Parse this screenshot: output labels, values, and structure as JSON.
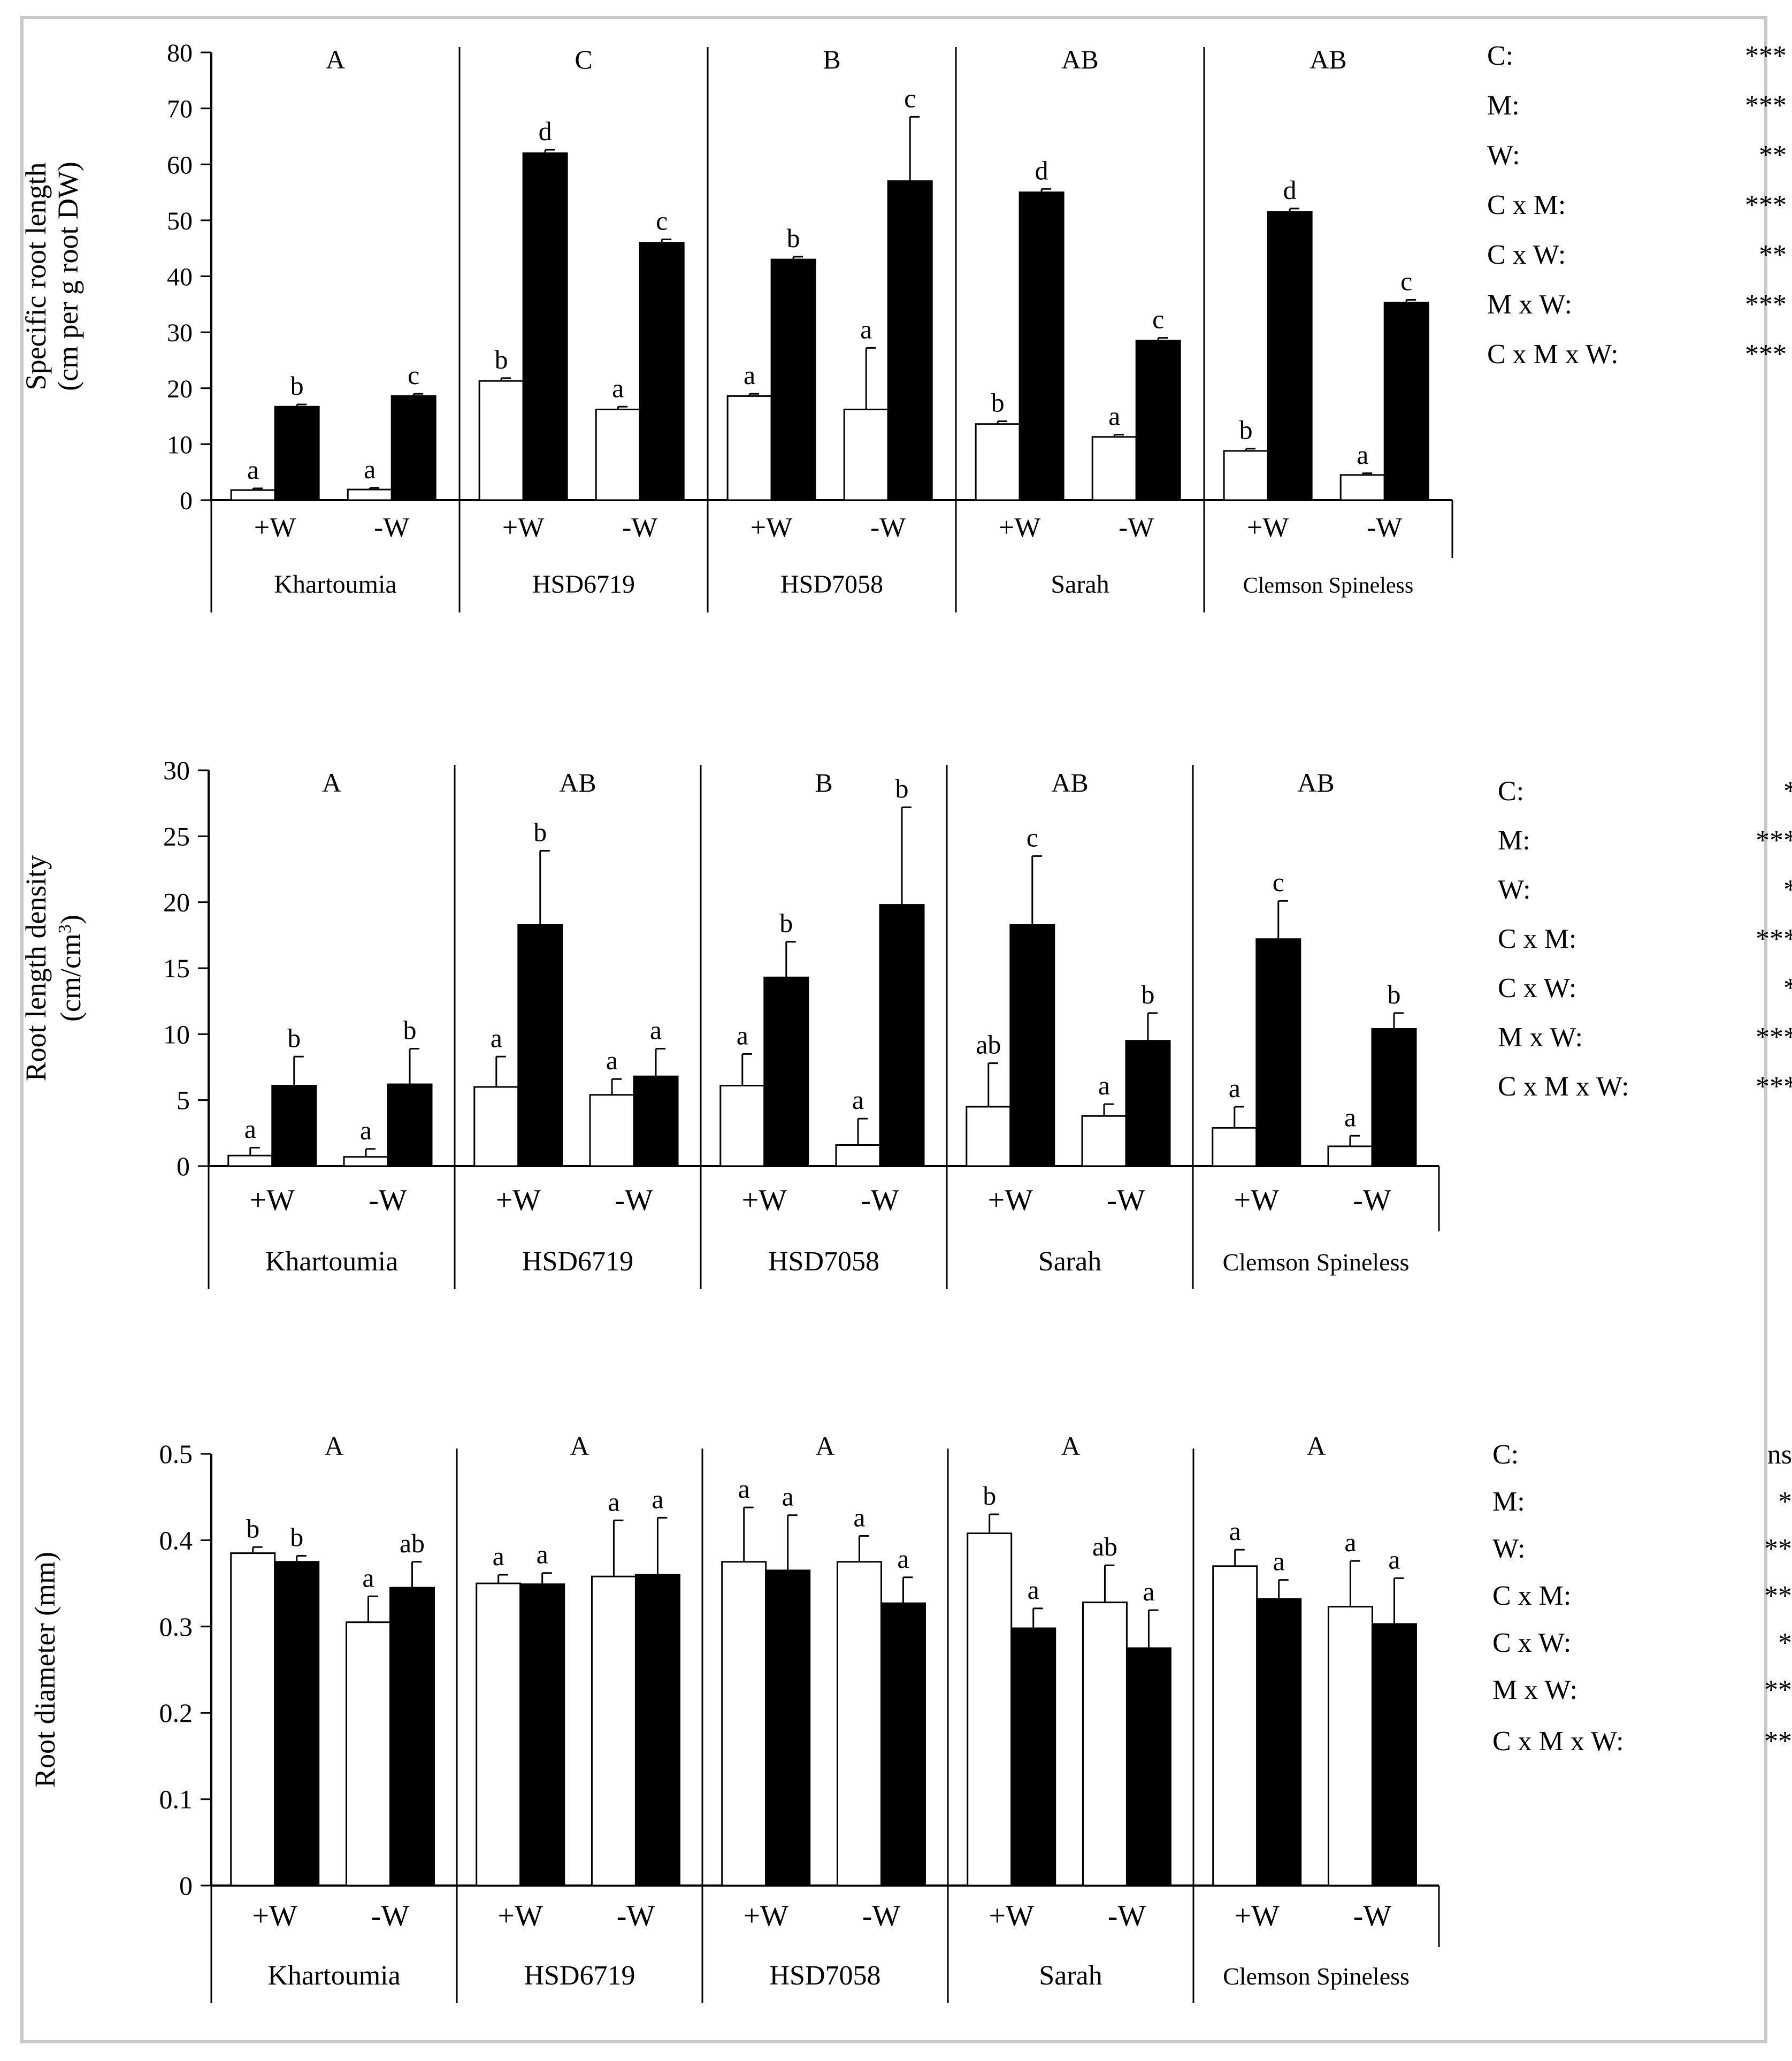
{
  "colors": {
    "bar_plus_m": "#000000",
    "bar_minus_m": "#ffffff",
    "frame": "#c8c8c8"
  },
  "chart_data": [
    {
      "type": "bar",
      "ylabel": "Specific root length",
      "ylabel_sub": "(cm per g root DW)",
      "ylim": [
        0,
        80
      ],
      "yticks": [
        0,
        10,
        20,
        30,
        40,
        50,
        60,
        70,
        80
      ],
      "ytick_labels": [
        "0",
        "10",
        "20",
        "30",
        "40",
        "50",
        "60",
        "70",
        "80"
      ],
      "cultivars": [
        "Khartoumia",
        "HSD6719",
        "HSD7058",
        "Sarah",
        "Clemson Spineless"
      ],
      "cultivar_letters": [
        "A",
        "C",
        "B",
        "AB",
        "AB"
      ],
      "water_levels": [
        "+W",
        "-W"
      ],
      "series": [
        {
          "name": "-M",
          "color": "#ffffff",
          "values": [
            1.8,
            1.9,
            21.3,
            16.2,
            18.6,
            16.2,
            13.6,
            11.3,
            8.8,
            4.5
          ],
          "errors": [
            0.3,
            0.3,
            0.5,
            0.5,
            0.4,
            11.0,
            0.5,
            0.4,
            0.4,
            0.3
          ],
          "letters": [
            "a",
            "a",
            "b",
            "a",
            "a",
            "a",
            "b",
            "a",
            "b",
            "a"
          ]
        },
        {
          "name": "+M",
          "color": "#000000",
          "values": [
            16.7,
            18.6,
            62.0,
            46.0,
            43.0,
            57.0,
            55.0,
            28.5,
            51.5,
            35.3
          ],
          "errors": [
            0.4,
            0.4,
            0.6,
            0.6,
            0.5,
            11.5,
            0.6,
            0.5,
            0.6,
            0.5
          ],
          "letters": [
            "b",
            "c",
            "d",
            "c",
            "b",
            "c",
            "d",
            "c",
            "d",
            "c"
          ]
        }
      ]
    },
    {
      "type": "bar",
      "ylabel": "Root length density",
      "ylabel_sub": "(cm/cm",
      "ylabel_sup": "3",
      "ylabel_close": ")",
      "ylim": [
        0,
        30
      ],
      "yticks": [
        0,
        5,
        10,
        15,
        20,
        25,
        30
      ],
      "ytick_labels": [
        "0",
        "5",
        "10",
        "15",
        "20",
        "25",
        "30"
      ],
      "cultivars": [
        "Khartoumia",
        "HSD6719",
        "HSD7058",
        "Sarah",
        "Clemson Spineless"
      ],
      "cultivar_letters": [
        "A",
        "AB",
        "B",
        "AB",
        "AB"
      ],
      "water_levels": [
        "+W",
        "-W"
      ],
      "series": [
        {
          "name": "-M",
          "color": "#ffffff",
          "values": [
            0.8,
            0.7,
            6.0,
            5.4,
            6.1,
            1.6,
            4.5,
            3.8,
            2.9,
            1.5
          ],
          "errors": [
            0.6,
            0.6,
            2.3,
            1.2,
            2.4,
            2.0,
            3.3,
            0.9,
            1.6,
            0.8
          ],
          "letters": [
            "a",
            "a",
            "a",
            "a",
            "a",
            "a",
            "ab",
            "a",
            "a",
            "a"
          ]
        },
        {
          "name": "+M",
          "color": "#000000",
          "values": [
            6.1,
            6.2,
            18.3,
            6.8,
            14.3,
            19.8,
            18.3,
            9.5,
            17.2,
            10.4
          ],
          "errors": [
            2.2,
            2.7,
            5.6,
            2.1,
            2.7,
            7.4,
            5.2,
            2.1,
            2.9,
            1.2
          ],
          "letters": [
            "b",
            "b",
            "b",
            "a",
            "b",
            "b",
            "c",
            "b",
            "c",
            "b"
          ]
        }
      ]
    },
    {
      "type": "bar",
      "ylabel": "Root diameter (mm)",
      "ylim": [
        0,
        0.5
      ],
      "yticks": [
        0,
        0.1,
        0.2,
        0.3,
        0.4,
        0.5
      ],
      "ytick_labels": [
        "0",
        "0.1",
        "0.2",
        "0.3",
        "0.4",
        "0.5"
      ],
      "cultivars": [
        "Khartoumia",
        "HSD6719",
        "HSD7058",
        "Sarah",
        "Clemson Spineless"
      ],
      "cultivar_letters": [
        "A",
        "A",
        "A",
        "A",
        "A"
      ],
      "water_levels": [
        "+W",
        "-W"
      ],
      "series": [
        {
          "name": "-M",
          "color": "#ffffff",
          "values": [
            0.385,
            0.305,
            0.35,
            0.358,
            0.375,
            0.375,
            0.408,
            0.328,
            0.37,
            0.323
          ],
          "errors": [
            0.007,
            0.03,
            0.01,
            0.065,
            0.063,
            0.03,
            0.022,
            0.043,
            0.019,
            0.053
          ],
          "letters": [
            "b",
            "a",
            "a",
            "a",
            "a",
            "a",
            "b",
            "ab",
            "a",
            "a"
          ]
        },
        {
          "name": "+M",
          "color": "#000000",
          "values": [
            0.375,
            0.345,
            0.349,
            0.36,
            0.365,
            0.327,
            0.298,
            0.275,
            0.332,
            0.303
          ],
          "errors": [
            0.007,
            0.03,
            0.013,
            0.066,
            0.064,
            0.03,
            0.023,
            0.044,
            0.022,
            0.053
          ],
          "letters": [
            "b",
            "ab",
            "a",
            "a",
            "a",
            "a",
            "a",
            "a",
            "a",
            "a"
          ]
        }
      ]
    }
  ],
  "stats": [
    {
      "rows": [
        {
          "label": "C:",
          "sig": "***"
        },
        {
          "label": "M:",
          "sig": "***"
        },
        {
          "label": "W:",
          "sig": "**"
        },
        {
          "label": "C x M:",
          "sig": "***"
        },
        {
          "label": "C x W:",
          "sig": "**"
        },
        {
          "label": "M x W:",
          "sig": "***"
        },
        {
          "label": "C x M x W:",
          "sig": "***"
        }
      ]
    },
    {
      "rows": [
        {
          "label": "C:",
          "sig": "*"
        },
        {
          "label": "M:",
          "sig": "***"
        },
        {
          "label": "W:",
          "sig": "*"
        },
        {
          "label": "C x M:",
          "sig": "***"
        },
        {
          "label": "C x W:",
          "sig": "*"
        },
        {
          "label": "M x W:",
          "sig": "***"
        },
        {
          "label": "C x M x W:",
          "sig": "***"
        }
      ]
    },
    {
      "rows": [
        {
          "label": "C:",
          "sig": "ns"
        },
        {
          "label": "M:",
          "sig": "*"
        },
        {
          "label": "W:",
          "sig": "**"
        },
        {
          "label": "C x M:",
          "sig": "**"
        },
        {
          "label": "C x W:",
          "sig": "*"
        },
        {
          "label": "M x W:",
          "sig": "**"
        },
        {
          "label": "C x M x W:",
          "sig": "**"
        }
      ]
    }
  ]
}
